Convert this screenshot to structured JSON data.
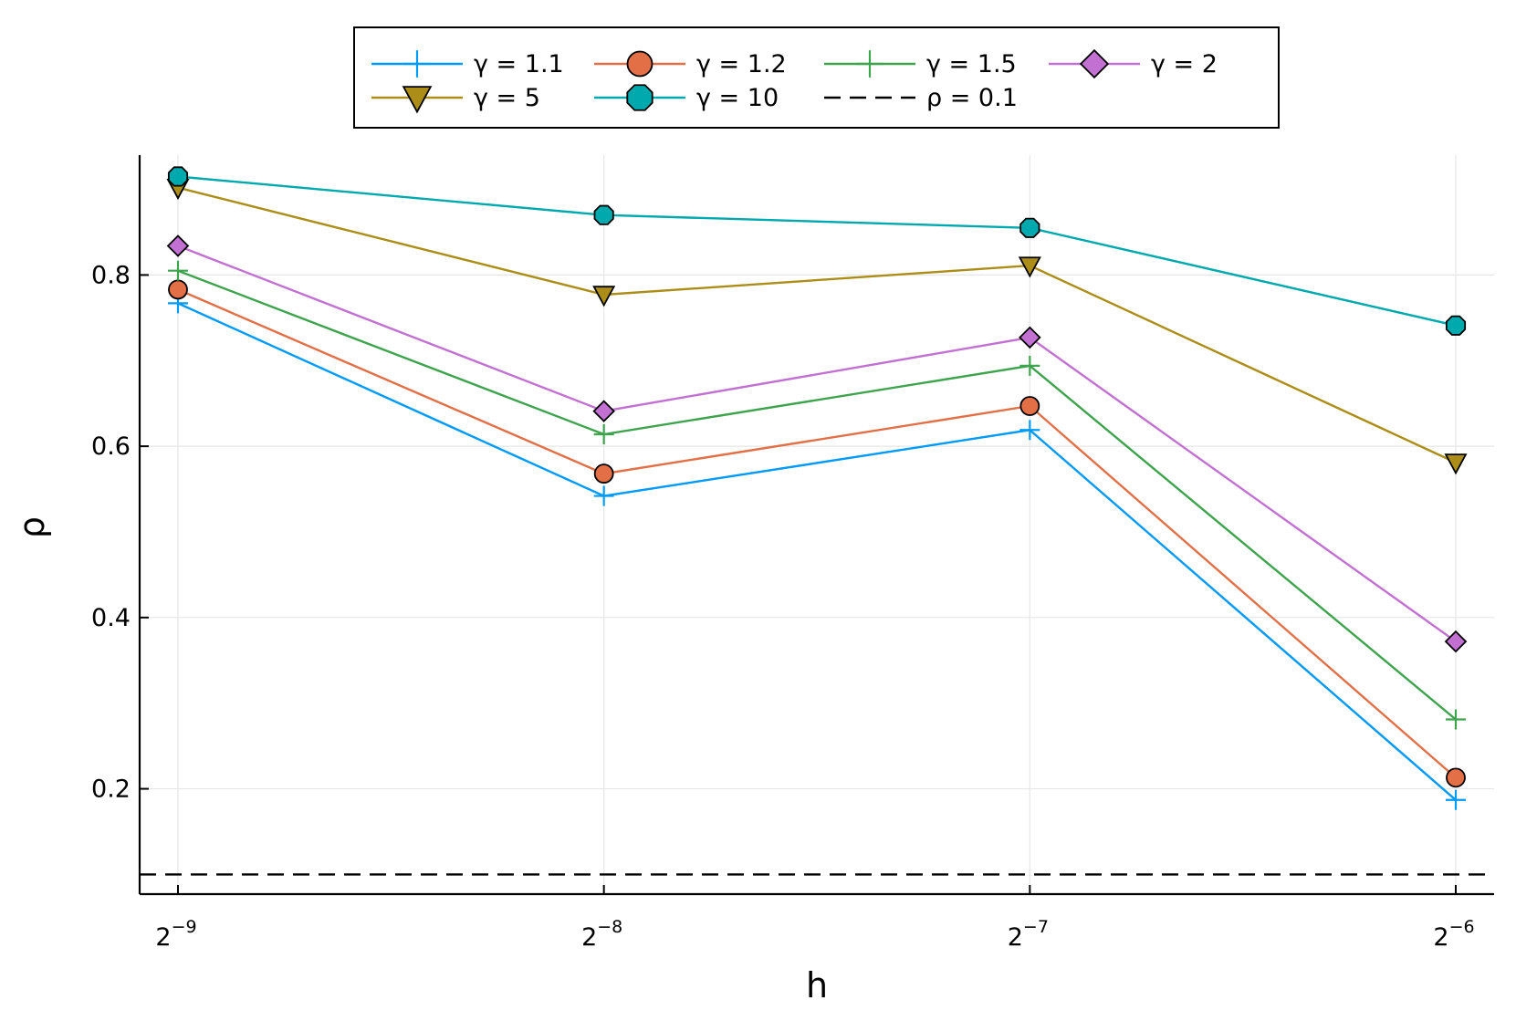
{
  "chart_data": {
    "type": "line",
    "xlabel": "h",
    "ylabel": "ρ",
    "x": [
      -9,
      -8,
      -7,
      -6
    ],
    "x_scale": "log2",
    "x_tick_labels": [
      {
        "base": "2",
        "exp": "−9"
      },
      {
        "base": "2",
        "exp": "−8"
      },
      {
        "base": "2",
        "exp": "−7"
      },
      {
        "base": "2",
        "exp": "−6"
      }
    ],
    "ylim": [
      0.077,
      0.94
    ],
    "y_ticks": [
      0.2,
      0.4,
      0.6,
      0.8
    ],
    "y_tick_labels": [
      "0.2",
      "0.4",
      "0.6",
      "0.8"
    ],
    "grid": true,
    "legend_position": "top-center-outside",
    "series": [
      {
        "name": "γ = 1.1",
        "color": "#009af9",
        "marker": "cross",
        "values": [
          0.767,
          0.542,
          0.619,
          0.187
        ]
      },
      {
        "name": "γ = 1.2",
        "color": "#e26f46",
        "marker": "circle",
        "values": [
          0.783,
          0.568,
          0.647,
          0.213
        ]
      },
      {
        "name": "γ = 1.5",
        "color": "#3da44d",
        "marker": "cross",
        "values": [
          0.805,
          0.614,
          0.694,
          0.281
        ]
      },
      {
        "name": "γ = 2",
        "color": "#c271d2",
        "marker": "diamond",
        "values": [
          0.834,
          0.641,
          0.727,
          0.372
        ]
      },
      {
        "name": "γ = 5",
        "color": "#ac8d18",
        "marker": "triangle-down",
        "values": [
          0.902,
          0.777,
          0.811,
          0.581
        ]
      },
      {
        "name": "γ = 10",
        "color": "#00a9ad",
        "marker": "octagon",
        "values": [
          0.915,
          0.87,
          0.855,
          0.741
        ]
      },
      {
        "name": "ρ = 0.1",
        "color": "#000000",
        "marker": "none",
        "style": "dashed",
        "reference_y": 0.1
      }
    ]
  }
}
